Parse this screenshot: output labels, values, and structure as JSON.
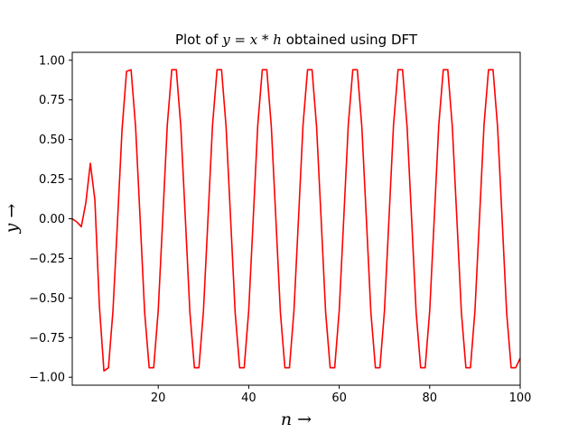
{
  "chart_data": {
    "type": "line",
    "title": "Plot of y = x * h obtained using DFT",
    "title_parts": {
      "prefix": "Plot of ",
      "math": "y = x * h",
      "suffix": " obtained using DFT"
    },
    "xlabel": "n →",
    "ylabel": "y →",
    "xlim": [
      1,
      100
    ],
    "ylim": [
      -1.05,
      1.05
    ],
    "xticks": [
      20,
      40,
      60,
      80,
      100
    ],
    "yticks": [
      -1.0,
      -0.75,
      -0.5,
      -0.25,
      0.0,
      0.25,
      0.5,
      0.75,
      1.0
    ],
    "xtick_labels": [
      "20",
      "40",
      "60",
      "80",
      "100"
    ],
    "ytick_labels": [
      "−1.00",
      "−0.75",
      "−0.50",
      "−0.25",
      "0.00",
      "0.25",
      "0.50",
      "0.75",
      "1.00"
    ],
    "grid": false,
    "series": [
      {
        "color": "#ff0000",
        "x": [
          1,
          2,
          3,
          4,
          5,
          6,
          7,
          8,
          9,
          10,
          11,
          12,
          13,
          14,
          15,
          16,
          17,
          18,
          19,
          20,
          21,
          22,
          23,
          24,
          25,
          26,
          27,
          28,
          29,
          30,
          31,
          32,
          33,
          34,
          35,
          36,
          37,
          38,
          39,
          40,
          41,
          42,
          43,
          44,
          45,
          46,
          47,
          48,
          49,
          50,
          51,
          52,
          53,
          54,
          55,
          56,
          57,
          58,
          59,
          60,
          61,
          62,
          63,
          64,
          65,
          66,
          67,
          68,
          69,
          70,
          71,
          72,
          73,
          74,
          75,
          76,
          77,
          78,
          79,
          80,
          81,
          82,
          83,
          84,
          85,
          86,
          87,
          88,
          89,
          90,
          91,
          92,
          93,
          94,
          95,
          96,
          97,
          98,
          99,
          100
        ],
        "y": [
          0.0,
          -0.02,
          -0.05,
          0.1,
          0.35,
          0.12,
          -0.55,
          -0.96,
          -0.94,
          -0.58,
          -0.02,
          0.56,
          0.93,
          0.94,
          0.58,
          0.0,
          -0.59,
          -0.94,
          -0.94,
          -0.58,
          0.0,
          0.59,
          0.94,
          0.94,
          0.58,
          0.0,
          -0.59,
          -0.94,
          -0.94,
          -0.58,
          0.0,
          0.59,
          0.94,
          0.94,
          0.58,
          0.0,
          -0.59,
          -0.94,
          -0.94,
          -0.58,
          0.0,
          0.59,
          0.94,
          0.94,
          0.58,
          0.0,
          -0.59,
          -0.94,
          -0.94,
          -0.58,
          0.0,
          0.59,
          0.94,
          0.94,
          0.58,
          0.0,
          -0.59,
          -0.94,
          -0.94,
          -0.58,
          0.0,
          0.59,
          0.94,
          0.94,
          0.58,
          0.0,
          -0.59,
          -0.94,
          -0.94,
          -0.58,
          0.0,
          0.59,
          0.94,
          0.94,
          0.58,
          0.0,
          -0.59,
          -0.94,
          -0.94,
          -0.58,
          0.0,
          0.59,
          0.94,
          0.94,
          0.58,
          0.0,
          -0.59,
          -0.94,
          -0.94,
          -0.58,
          0.0,
          0.59,
          0.94,
          0.94,
          0.58,
          0.0,
          -0.59,
          -0.94,
          -0.94,
          -0.88
        ]
      }
    ]
  }
}
